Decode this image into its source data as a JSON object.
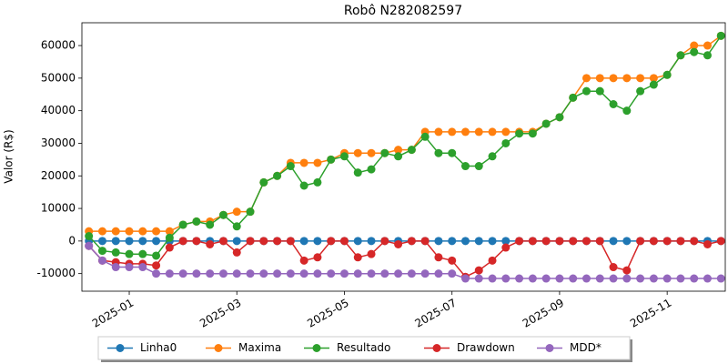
{
  "chart_data": {
    "type": "line",
    "title": "Robô N282082597",
    "y_label": "Valor (R$)",
    "x": [
      0.25,
      0.5,
      0.75,
      1,
      1.25,
      1.5,
      1.75,
      2,
      2.25,
      2.5,
      2.75,
      3,
      3.25,
      3.5,
      3.75,
      4,
      4.25,
      4.5,
      4.75,
      5,
      5.25,
      5.5,
      5.75,
      6,
      6.25,
      6.5,
      6.75,
      7,
      7.25,
      7.5,
      7.75,
      8,
      8.25,
      8.5,
      8.75,
      9,
      9.25,
      9.5,
      9.75,
      10,
      10.25,
      10.5,
      10.75,
      11,
      11.25,
      11.5,
      11.75,
      12
    ],
    "xlim": [
      0.12,
      12.08
    ],
    "xticks": [
      {
        "value": 1,
        "label": "2025-01"
      },
      {
        "value": 3,
        "label": "2025-03"
      },
      {
        "value": 5,
        "label": "2025-05"
      },
      {
        "value": 7,
        "label": "2025-07"
      },
      {
        "value": 9,
        "label": "2025-09"
      },
      {
        "value": 11,
        "label": "2025-11"
      }
    ],
    "ylim": [
      -15400,
      67000
    ],
    "yticks": [
      -10000,
      0,
      10000,
      20000,
      30000,
      40000,
      50000,
      60000
    ],
    "legend": "bottom",
    "series": [
      {
        "name": "Linha0",
        "color": "#1f77b4",
        "values": [
          0,
          0,
          0,
          0,
          0,
          0,
          0,
          0,
          0,
          0,
          0,
          0,
          0,
          0,
          0,
          0,
          0,
          0,
          0,
          0,
          0,
          0,
          0,
          0,
          0,
          0,
          0,
          0,
          0,
          0,
          0,
          0,
          0,
          0,
          0,
          0,
          0,
          0,
          0,
          0,
          0,
          0,
          0,
          0,
          0,
          0,
          0,
          0
        ]
      },
      {
        "name": "Maxima",
        "color": "#ff7f0e",
        "values": [
          3000,
          3000,
          3000,
          3000,
          3000,
          3000,
          3000,
          5000,
          6000,
          6000,
          8000,
          9000,
          9000,
          18000,
          20000,
          24000,
          24000,
          24000,
          25000,
          27000,
          27000,
          27000,
          27000,
          28000,
          28000,
          33500,
          33500,
          33500,
          33500,
          33500,
          33500,
          33500,
          33500,
          33500,
          36000,
          38000,
          44000,
          50000,
          50000,
          50000,
          50000,
          50000,
          50000,
          51000,
          57000,
          60000,
          60000,
          63000
        ]
      },
      {
        "name": "Resultado",
        "color": "#2ca02c",
        "values": [
          1500,
          -3000,
          -3500,
          -4000,
          -4000,
          -4500,
          1000,
          5000,
          6000,
          5000,
          8000,
          4500,
          9000,
          18000,
          20000,
          23000,
          17000,
          18000,
          25000,
          26000,
          21000,
          22000,
          27000,
          26000,
          28000,
          32000,
          27000,
          27000,
          23000,
          23000,
          26000,
          30000,
          33000,
          33000,
          36000,
          38000,
          44000,
          46000,
          46000,
          42000,
          40000,
          46000,
          48000,
          51000,
          57000,
          58000,
          57000,
          63000
        ]
      },
      {
        "name": "Drawdown",
        "color": "#d62728",
        "values": [
          -1500,
          -6000,
          -6500,
          -7000,
          -7000,
          -7500,
          -2000,
          0,
          0,
          -1000,
          0,
          -3500,
          0,
          0,
          0,
          0,
          -6000,
          -5000,
          0,
          0,
          -5000,
          -4000,
          0,
          -1000,
          0,
          0,
          -5000,
          -6000,
          -11000,
          -9000,
          -6000,
          -2000,
          0,
          0,
          0,
          0,
          0,
          0,
          0,
          -8000,
          -9000,
          0,
          0,
          0,
          0,
          0,
          -1000,
          0
        ]
      },
      {
        "name": "MDD*",
        "color": "#9467bd",
        "values": [
          -1500,
          -6000,
          -8000,
          -8000,
          -8000,
          -10000,
          -10000,
          -10000,
          -10000,
          -10000,
          -10000,
          -10000,
          -10000,
          -10000,
          -10000,
          -10000,
          -10000,
          -10000,
          -10000,
          -10000,
          -10000,
          -10000,
          -10000,
          -10000,
          -10000,
          -10000,
          -10000,
          -10000,
          -11500,
          -11500,
          -11500,
          -11500,
          -11500,
          -11500,
          -11500,
          -11500,
          -11500,
          -11500,
          -11500,
          -11500,
          -11500,
          -11500,
          -11500,
          -11500,
          -11500,
          -11500,
          -11500,
          -11500
        ]
      }
    ]
  }
}
